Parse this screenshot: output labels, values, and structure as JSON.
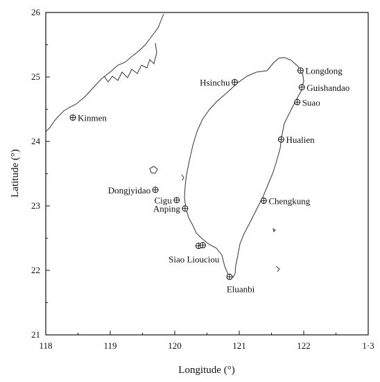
{
  "chart_data": {
    "type": "scatter",
    "title": "",
    "xlabel": "Longitude (°)",
    "ylabel": "Latitude (°)",
    "xlim": [
      118,
      123
    ],
    "ylim": [
      21,
      26
    ],
    "x_ticks": [
      "118",
      "119",
      "120",
      "121",
      "122",
      "1·3"
    ],
    "y_ticks": [
      "21",
      "22",
      "23",
      "24",
      "25",
      "26"
    ],
    "grid": false,
    "marker": "circled-plus",
    "stations": [
      {
        "name": "Longdong",
        "lon": 121.95,
        "lat": 25.1,
        "label_side": "right"
      },
      {
        "name": "Guishandao",
        "lon": 121.97,
        "lat": 24.84,
        "label_side": "right"
      },
      {
        "name": "Suao",
        "lon": 121.9,
        "lat": 24.61,
        "label_side": "right"
      },
      {
        "name": "Hualien",
        "lon": 121.65,
        "lat": 24.03,
        "label_side": "right"
      },
      {
        "name": "Chengkung",
        "lon": 121.38,
        "lat": 23.08,
        "label_side": "right"
      },
      {
        "name": "Eluanbi",
        "lon": 120.85,
        "lat": 21.9,
        "label_side": "below"
      },
      {
        "name": "Siao Liouciou",
        "lon": 120.37,
        "lat": 22.38,
        "label_side": "below-left"
      },
      {
        "name": "Anping",
        "lon": 120.16,
        "lat": 22.96,
        "label_side": "left"
      },
      {
        "name": "Cigu",
        "lon": 120.03,
        "lat": 23.09,
        "label_side": "left"
      },
      {
        "name": "Dongjyidao",
        "lon": 119.7,
        "lat": 23.25,
        "label_side": "left"
      },
      {
        "name": "Hsinchu",
        "lon": 120.93,
        "lat": 24.92,
        "label_side": "left"
      },
      {
        "name": "Kinmen",
        "lon": 118.42,
        "lat": 24.37,
        "label_side": "right"
      }
    ]
  }
}
